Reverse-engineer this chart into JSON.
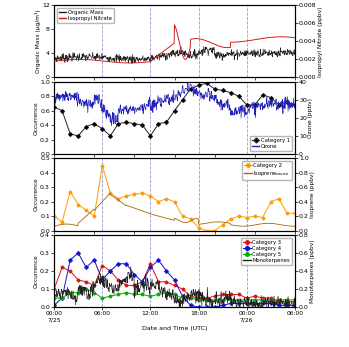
{
  "title": "",
  "xlabel": "Date and Time (UTC)",
  "x_ticks": [
    0,
    6,
    12,
    18,
    24,
    30
  ],
  "x_ticklabels": [
    "00:00\n7/25",
    "06:00",
    "12:00",
    "18:00",
    "00:00\n7/26",
    "06:00"
  ],
  "x_lim": [
    0,
    30
  ],
  "vlines": [
    6,
    12,
    18,
    24
  ],
  "panel1": {
    "ylabel_left": "Organic Mass (μg/m³)",
    "ylabel_right": "Isopropyl Nitrate (ppbv)",
    "ylim_left": [
      0,
      12
    ],
    "ylim_right": [
      0.0,
      0.008
    ],
    "yticks_left": [
      0,
      4,
      8,
      12
    ],
    "yticks_right": [
      0.0,
      0.002,
      0.004,
      0.006,
      0.008
    ]
  },
  "panel2": {
    "ylabel_left": "Occurrence",
    "ylabel_right": "Ozone (ppbv)",
    "ylim_left": [
      0.0,
      1.0
    ],
    "ylim_right": [
      0,
      40
    ],
    "yticks_left": [
      0.0,
      0.2,
      0.4,
      0.6,
      0.8,
      1.0
    ],
    "yticks_right": [
      0,
      10,
      20,
      30,
      40
    ]
  },
  "panel3": {
    "ylabel_left": "Occurrence",
    "ylabel_right": "Isoprene (ppbv)",
    "ylim_left": [
      0.0,
      0.5
    ],
    "ylim_right": [
      0.0,
      1.0
    ],
    "yticks_left": [
      0.0,
      0.1,
      0.2,
      0.3,
      0.4,
      0.5
    ],
    "yticks_right": [
      0.0,
      0.2,
      0.4,
      0.6,
      0.8,
      1.0
    ]
  },
  "panel4": {
    "ylabel_left": "Occurrence",
    "ylabel_right": "Monoterpenes (ppbv)",
    "ylim_left": [
      0.0,
      0.4
    ],
    "ylim_right": [
      0.0,
      0.8
    ],
    "yticks_left": [
      0.0,
      0.1,
      0.2,
      0.3,
      0.4
    ],
    "yticks_right": [
      0.0,
      0.2,
      0.4,
      0.6,
      0.8
    ]
  },
  "colors": {
    "organic_mass": "#222222",
    "isopropyl_nitrate": "#cc1111",
    "category1": "#222222",
    "ozone": "#2222bb",
    "category2": "#ff9900",
    "isoprene": "#aa6600",
    "category3": "#dd1111",
    "category4": "#1111cc",
    "category5": "#00aa00",
    "monoterpenes": "#222222"
  }
}
